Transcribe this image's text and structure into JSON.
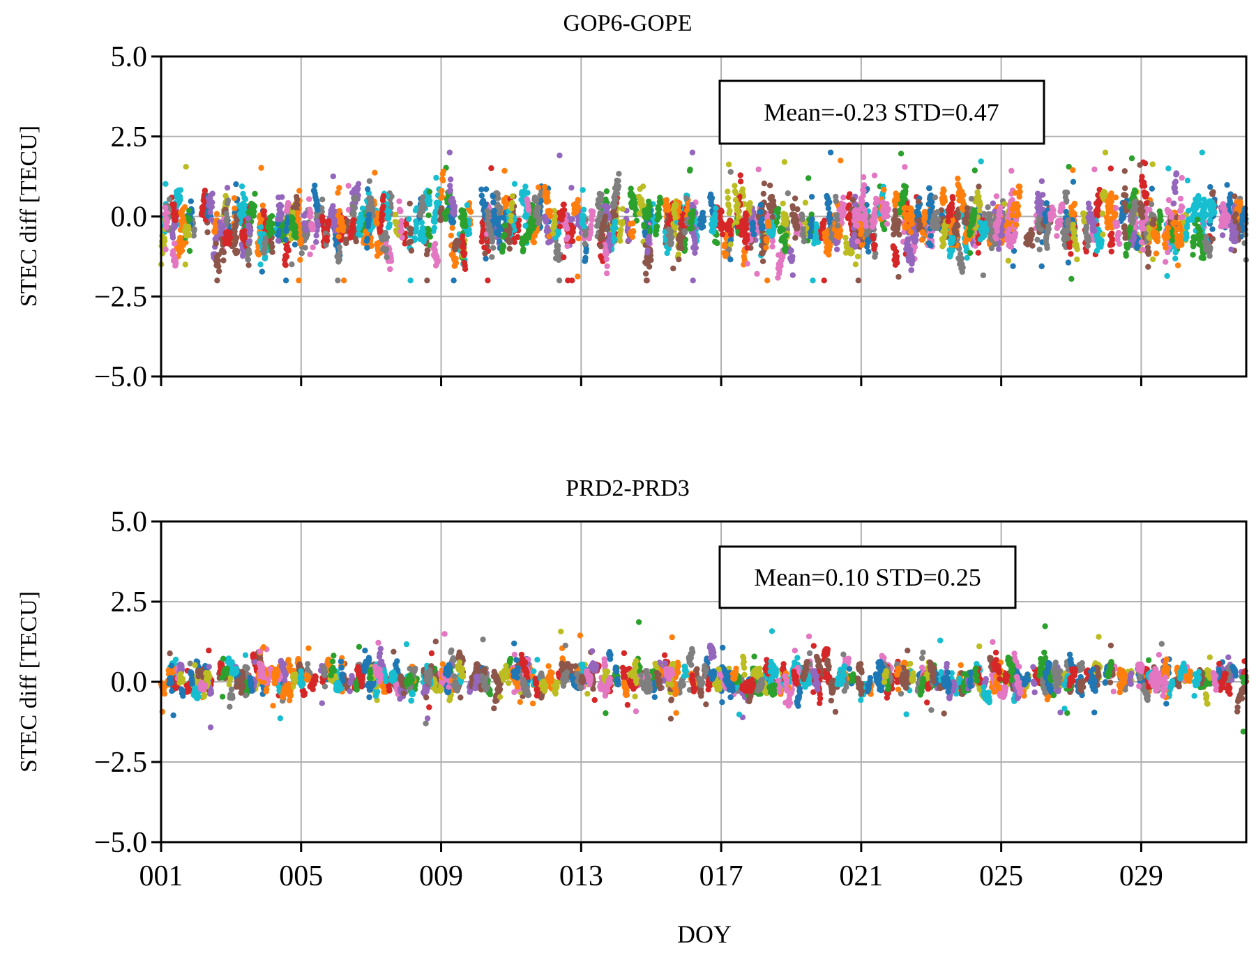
{
  "chart_data": [
    {
      "type": "scatter",
      "title": "GOP6-GOPE",
      "xlabel": "",
      "ylabel": "STEC diff [TECU]",
      "xlim": [
        1,
        32
      ],
      "ylim": [
        -5.0,
        5.0
      ],
      "yticks": [
        5.0,
        2.5,
        0.0,
        -2.5,
        -5.0
      ],
      "ytick_labels": [
        "5.0",
        "2.5",
        "0.0",
        "−2.5",
        "−5.0"
      ],
      "xticks": [
        1,
        5,
        9,
        13,
        17,
        21,
        25,
        29
      ],
      "xtick_labels": [],
      "grid": true,
      "annotation": "Mean=-0.23 STD=0.47",
      "mean": -0.23,
      "std": 0.47,
      "value_range": [
        -2.0,
        2.0
      ],
      "seed": 7
    },
    {
      "type": "scatter",
      "title": "PRD2-PRD3",
      "xlabel": "DOY",
      "ylabel": "STEC diff [TECU]",
      "xlim": [
        1,
        32
      ],
      "ylim": [
        -5.0,
        5.0
      ],
      "yticks": [
        5.0,
        2.5,
        0.0,
        -2.5,
        -5.0
      ],
      "ytick_labels": [
        "5.0",
        "2.5",
        "0.0",
        "−2.5",
        "−5.0"
      ],
      "xticks": [
        1,
        5,
        9,
        13,
        17,
        21,
        25,
        29
      ],
      "xtick_labels": [
        "001",
        "005",
        "009",
        "013",
        "017",
        "021",
        "025",
        "029"
      ],
      "grid": true,
      "annotation": "Mean=0.10 STD=0.25",
      "mean": 0.1,
      "std": 0.25,
      "value_range": [
        -2.0,
        2.0
      ],
      "seed": 23
    }
  ],
  "colors": {
    "series": [
      "#d62728",
      "#2ca02c",
      "#8c564b",
      "#7f7f7f",
      "#bcbd22",
      "#17becf",
      "#9467bd",
      "#e377c2",
      "#ff7f0e",
      "#1f77b4"
    ],
    "grid": "#b0b0b0",
    "axis": "#000000"
  }
}
